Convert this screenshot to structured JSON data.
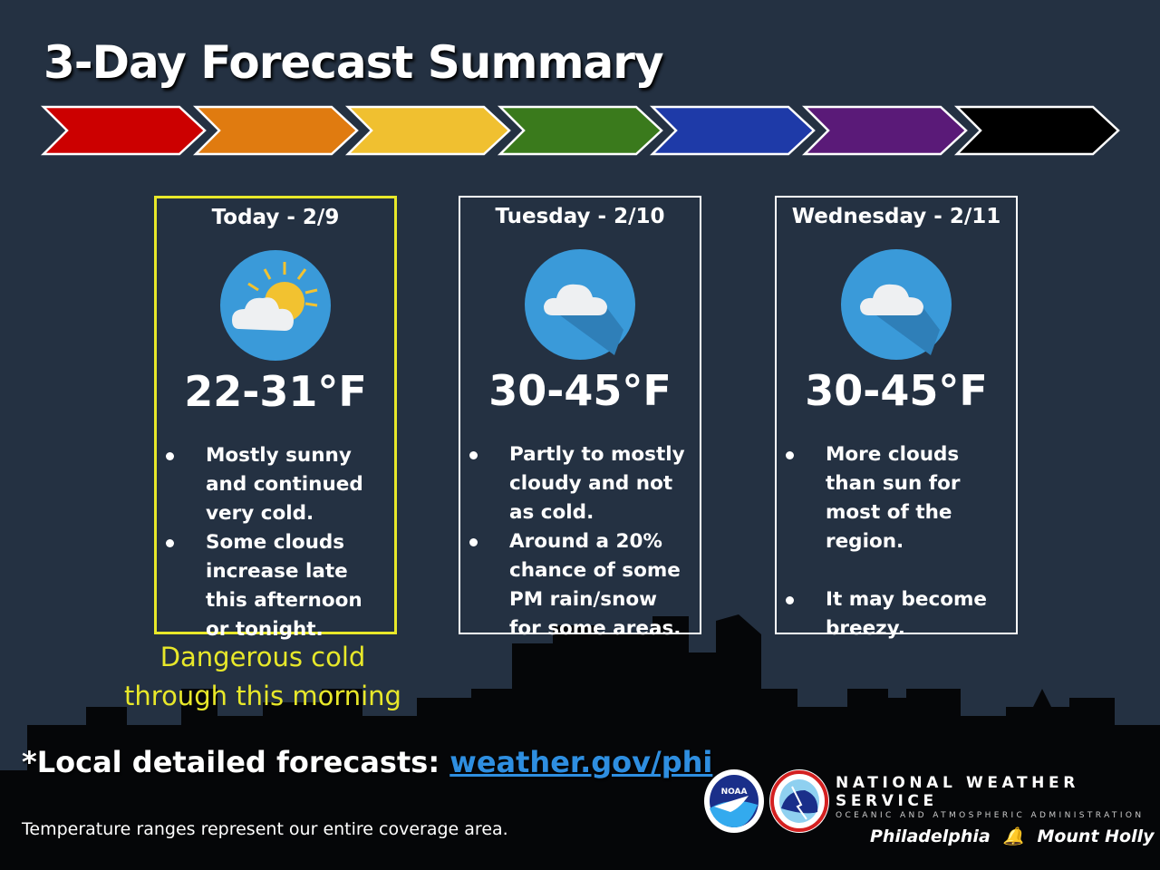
{
  "title": "3-Day Forecast Summary",
  "arrow_colors": [
    "#cc0000",
    "#e07b10",
    "#f0c030",
    "#3a7a1c",
    "#1e3aa8",
    "#5a1a78",
    "#000000"
  ],
  "days": [
    {
      "label": "Today - 2/9",
      "icon": "partly-sunny-icon",
      "temp": "22-31°F",
      "highlight": "#e8e82a",
      "bullets": [
        "Mostly sunny and continued very cold.",
        "Some clouds increase late this afternoon or tonight."
      ]
    },
    {
      "label": "Tuesday - 2/10",
      "icon": "cloud-icon",
      "temp": "30-45°F",
      "bullets": [
        "Partly to mostly cloudy and not as cold.",
        "Around a 20% chance of some PM rain/snow for some areas."
      ]
    },
    {
      "label": "Wednesday - 2/11",
      "icon": "cloud-icon",
      "temp": "30-45°F",
      "bullets": [
        "More clouds than sun for most of the region.",
        "It may become breezy."
      ]
    }
  ],
  "warning": "Dangerous cold through this morning",
  "local_prefix": "*Local detailed forecasts: ",
  "local_link": "weather.gov/phi",
  "note": "Temperature ranges represent our entire coverage area.",
  "footer": {
    "org": "NATIONAL WEATHER SERVICE",
    "sub": "OCEANIC AND ATMOSPHERIC ADMINISTRATION",
    "office1": "Philadelphia",
    "office2": "Mount Holly",
    "noaa": "NOAA"
  }
}
